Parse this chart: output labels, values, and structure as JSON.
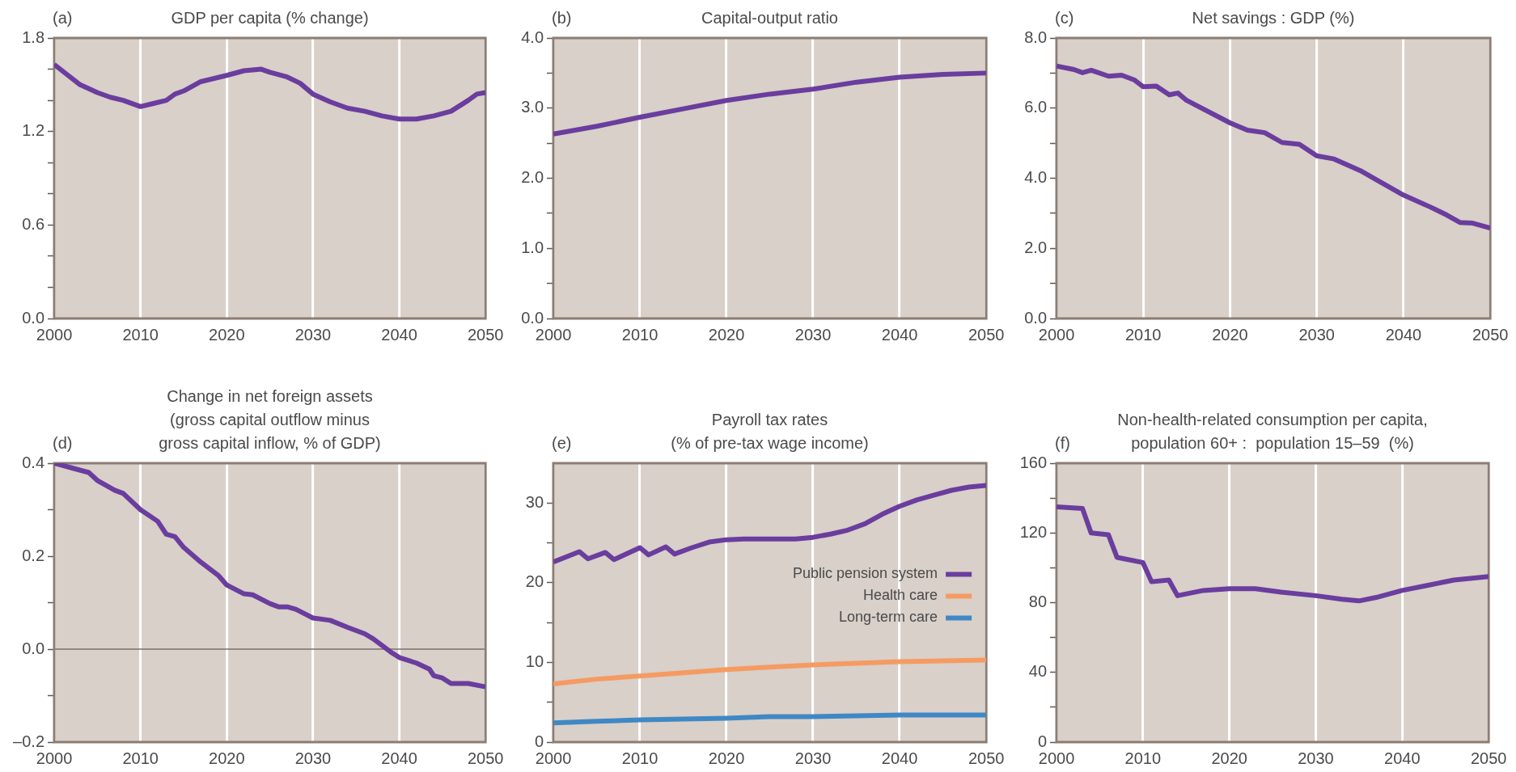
{
  "chart_data": [
    {
      "type": "line",
      "title": "GDP per capita (% change)",
      "annotations": [
        "(a)"
      ],
      "xlim": [
        2000,
        2050
      ],
      "xticks": [
        2000,
        2010,
        2020,
        2030,
        2040,
        2050
      ],
      "ylim": [
        0,
        1.8
      ],
      "yticks": [
        {
          "value": 0,
          "label": "0.0"
        },
        {
          "value": 0.2,
          "label": null
        },
        {
          "value": 0.4,
          "label": null
        },
        0.6,
        {
          "value": 0.8,
          "label": null
        },
        {
          "value": 1,
          "label": null
        },
        1.2,
        {
          "value": 1.4,
          "label": null
        },
        {
          "value": 1.6,
          "label": null
        },
        1.8
      ],
      "grid": "x",
      "series": [
        {
          "color": "#6a3d9e",
          "x": [
            2000,
            2003,
            2005,
            2006.5,
            2008,
            2010,
            2011.5,
            2013,
            2014,
            2015,
            2017,
            2020,
            2022,
            2024,
            2025,
            2027,
            2028.5,
            2030,
            2032,
            2034,
            2036,
            2038,
            2040,
            2042,
            2044,
            2046,
            2048,
            2049,
            2050
          ],
          "values": [
            1.63,
            1.5,
            1.45,
            1.42,
            1.4,
            1.36,
            1.38,
            1.4,
            1.44,
            1.46,
            1.52,
            1.56,
            1.59,
            1.6,
            1.58,
            1.55,
            1.51,
            1.44,
            1.39,
            1.35,
            1.33,
            1.3,
            1.28,
            1.28,
            1.3,
            1.33,
            1.4,
            1.44,
            1.45
          ]
        }
      ]
    },
    {
      "type": "line",
      "title": "Capital-output ratio",
      "annotations": [
        "(b)"
      ],
      "xlim": [
        2000,
        2050
      ],
      "xticks": [
        2000,
        2010,
        2020,
        2030,
        2040,
        2050
      ],
      "ylim": [
        0,
        4
      ],
      "yticks": [
        {
          "value": 0,
          "label": "0.0"
        },
        {
          "value": 0.5,
          "label": null
        },
        {
          "value": 1,
          "label": "1.0"
        },
        {
          "value": 1.5,
          "label": null
        },
        {
          "value": 2,
          "label": "2.0"
        },
        {
          "value": 2.5,
          "label": null
        },
        {
          "value": 3,
          "label": "3.0"
        },
        {
          "value": 3.5,
          "label": null
        },
        {
          "value": 4,
          "label": "4.0"
        }
      ],
      "grid": "x",
      "series": [
        {
          "color": "#6a3d9e",
          "x": [
            2000,
            2005,
            2010,
            2015,
            2020,
            2025,
            2030,
            2035,
            2040,
            2045,
            2050
          ],
          "values": [
            2.63,
            2.74,
            2.87,
            2.99,
            3.11,
            3.2,
            3.27,
            3.37,
            3.44,
            3.48,
            3.5
          ]
        }
      ]
    },
    {
      "type": "line",
      "title": "Net savings : GDP (%)",
      "annotations": [
        "(c)"
      ],
      "xlim": [
        2000,
        2050
      ],
      "xticks": [
        2000,
        2010,
        2020,
        2030,
        2040,
        2050
      ],
      "ylim": [
        0,
        8
      ],
      "yticks": [
        {
          "value": 0,
          "label": "0.0"
        },
        {
          "value": 1,
          "label": null
        },
        {
          "value": 2,
          "label": "2.0"
        },
        {
          "value": 3,
          "label": null
        },
        {
          "value": 4,
          "label": "4.0"
        },
        {
          "value": 5,
          "label": null
        },
        {
          "value": 6,
          "label": "6.0"
        },
        {
          "value": 7,
          "label": null
        },
        {
          "value": 8,
          "label": "8.0"
        }
      ],
      "grid": "x",
      "series": [
        {
          "color": "#6a3d9e",
          "x": [
            2000,
            2002,
            2003,
            2004,
            2006,
            2007.5,
            2009,
            2010,
            2011.5,
            2013,
            2014,
            2015,
            2020,
            2022,
            2024,
            2026,
            2028,
            2030,
            2032,
            2035,
            2037,
            2040,
            2043,
            2045,
            2046.5,
            2048,
            2050
          ],
          "values": [
            7.2,
            7.1,
            7.01,
            7.08,
            6.91,
            6.94,
            6.8,
            6.61,
            6.63,
            6.38,
            6.43,
            6.22,
            5.58,
            5.37,
            5.3,
            5.02,
            4.97,
            4.64,
            4.55,
            4.22,
            3.94,
            3.52,
            3.19,
            2.95,
            2.74,
            2.72,
            2.58
          ]
        }
      ]
    },
    {
      "type": "line",
      "title": "Change in net foreign assets\n(gross capital outflow minus\ngross capital inflow, % of GDP)",
      "annotations": [
        "(d)"
      ],
      "xlim": [
        2000,
        2050
      ],
      "xticks": [
        2000,
        2010,
        2020,
        2030,
        2040,
        2050
      ],
      "ylim": [
        -0.2,
        0.4
      ],
      "yticks": [
        {
          "value": -0.2,
          "label": "–0.2"
        },
        {
          "value": -0.1,
          "label": null
        },
        {
          "value": 0,
          "label": "0.0"
        },
        {
          "value": 0.1,
          "label": null
        },
        0.2,
        {
          "value": 0.3,
          "label": null
        },
        0.4
      ],
      "grid": "x",
      "ref_lines": [
        {
          "axis": "y",
          "value": 0,
          "color": "#7d7069"
        }
      ],
      "series": [
        {
          "color": "#6a3d9e",
          "x": [
            2000,
            2002,
            2004,
            2005,
            2007,
            2008,
            2010,
            2012,
            2013,
            2014,
            2015,
            2017,
            2019,
            2020,
            2022,
            2023,
            2025,
            2026,
            2027,
            2028,
            2030,
            2032,
            2034,
            2036,
            2037,
            2039,
            2040,
            2042,
            2043.5,
            2044,
            2045,
            2046,
            2048,
            2050
          ],
          "values": [
            0.4,
            0.39,
            0.38,
            0.363,
            0.342,
            0.335,
            0.3,
            0.275,
            0.247,
            0.242,
            0.219,
            0.187,
            0.159,
            0.138,
            0.119,
            0.117,
            0.098,
            0.091,
            0.091,
            0.086,
            0.067,
            0.062,
            0.047,
            0.033,
            0.022,
            -0.006,
            -0.018,
            -0.03,
            -0.043,
            -0.057,
            -0.062,
            -0.074,
            -0.074,
            -0.081
          ]
        }
      ]
    },
    {
      "type": "line",
      "title": "Payroll tax rates\n(% of pre-tax wage income)",
      "annotations": [
        "(e)"
      ],
      "xlim": [
        2000,
        2050
      ],
      "xticks": [
        2000,
        2010,
        2020,
        2030,
        2040,
        2050
      ],
      "ylim": [
        0,
        35
      ],
      "yticks": [
        0,
        {
          "value": 5,
          "label": null
        },
        10,
        {
          "value": 15,
          "label": null
        },
        20,
        {
          "value": 25,
          "label": null
        },
        30
      ],
      "grid": "x",
      "legend": "right",
      "series": [
        {
          "name": "Public pension system",
          "color": "#6a3d9e",
          "x": [
            2000,
            2003,
            2004,
            2006,
            2007,
            2010,
            2011,
            2013,
            2014,
            2016,
            2018,
            2020,
            2022,
            2025,
            2028,
            2030,
            2032,
            2034,
            2036,
            2038,
            2040,
            2042,
            2044,
            2046,
            2048,
            2050
          ],
          "values": [
            22.6,
            23.9,
            23.0,
            23.8,
            22.9,
            24.4,
            23.5,
            24.5,
            23.6,
            24.4,
            25.1,
            25.4,
            25.5,
            25.5,
            25.5,
            25.7,
            26.1,
            26.6,
            27.4,
            28.6,
            29.6,
            30.4,
            31.0,
            31.6,
            32.0,
            32.2
          ]
        },
        {
          "name": "Health care",
          "color": "#f59b62",
          "x": [
            2000,
            2005,
            2010,
            2015,
            2020,
            2025,
            2030,
            2035,
            2040,
            2045,
            2050
          ],
          "values": [
            7.3,
            7.9,
            8.3,
            8.7,
            9.1,
            9.4,
            9.7,
            9.9,
            10.1,
            10.2,
            10.3
          ]
        },
        {
          "name": "Long-term care",
          "color": "#3f88c5",
          "x": [
            2000,
            2005,
            2010,
            2015,
            2020,
            2025,
            2030,
            2035,
            2040,
            2045,
            2050
          ],
          "values": [
            2.4,
            2.6,
            2.8,
            2.9,
            3.0,
            3.2,
            3.2,
            3.3,
            3.4,
            3.4,
            3.4
          ]
        }
      ]
    },
    {
      "type": "line",
      "title": "Non-health-related consumption per capita,\npopulation 60+ :  population 15–59  (%)",
      "annotations": [
        "(f)"
      ],
      "xlim": [
        2000,
        2050
      ],
      "xticks": [
        2000,
        2010,
        2020,
        2030,
        2040,
        2050
      ],
      "ylim": [
        0,
        160
      ],
      "yticks": [
        0,
        {
          "value": 20,
          "label": null
        },
        40,
        {
          "value": 60,
          "label": null
        },
        80,
        {
          "value": 100,
          "label": null
        },
        120,
        {
          "value": 140,
          "label": null
        },
        160
      ],
      "grid": "x",
      "series": [
        {
          "color": "#6a3d9e",
          "x": [
            2000,
            2003,
            2004,
            2006,
            2007,
            2010,
            2011,
            2013,
            2014,
            2017,
            2020,
            2023,
            2026,
            2030,
            2033,
            2035,
            2037,
            2040,
            2043,
            2046,
            2050
          ],
          "values": [
            135,
            134,
            120,
            119,
            106,
            103,
            92,
            93,
            84,
            87,
            88,
            88,
            86,
            84,
            82,
            81,
            83,
            87,
            90,
            93,
            95
          ]
        }
      ]
    }
  ]
}
